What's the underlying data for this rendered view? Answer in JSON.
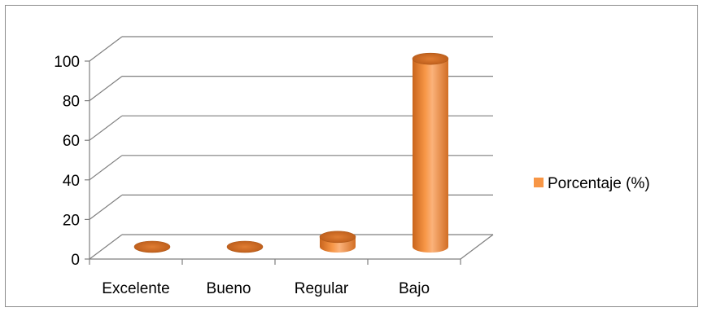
{
  "chart_data": {
    "type": "bar",
    "style": "3d-cylinder",
    "categories": [
      "Excelente",
      "Bueno",
      "Regular",
      "Bajo"
    ],
    "series": [
      {
        "name": "Porcentaje (%)",
        "values": [
          0,
          0,
          5,
          95
        ]
      }
    ],
    "ylim": [
      0,
      100
    ],
    "yticks": [
      0,
      20,
      40,
      60,
      80,
      100
    ],
    "ytick_labels": [
      "0",
      "20",
      "40",
      "60",
      "80",
      "100"
    ],
    "grid": true,
    "legend_position": "right",
    "colors": {
      "bar": "#F79646",
      "bar_dark": "#C0631B",
      "grid": "#7f7f7f"
    }
  }
}
